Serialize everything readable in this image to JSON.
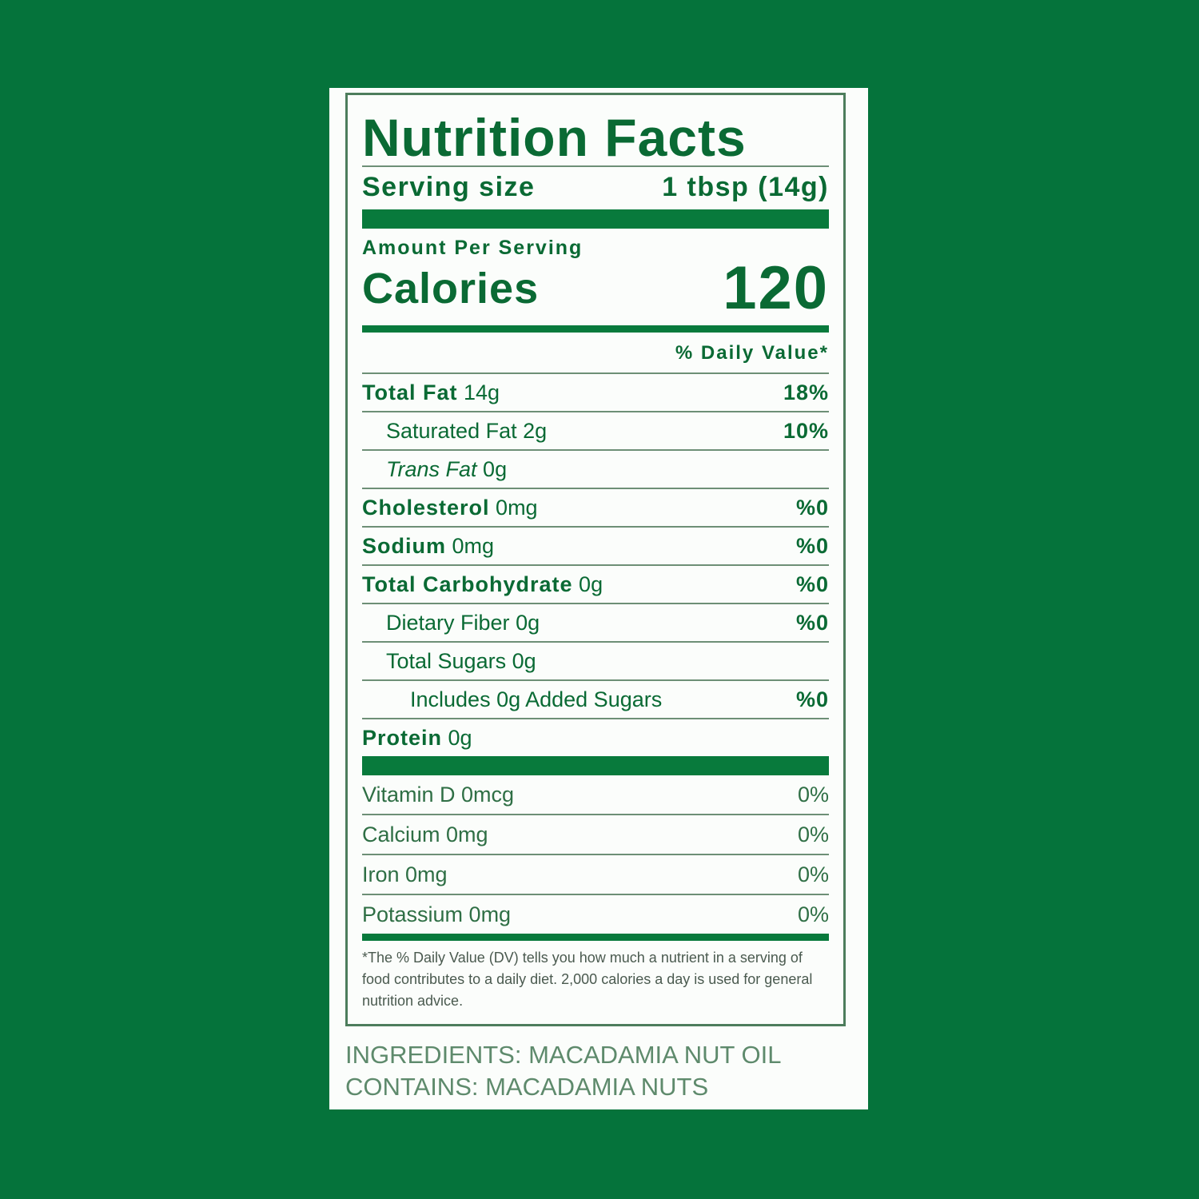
{
  "label": {
    "title": "Nutrition Facts",
    "serving_label": "Serving size",
    "serving_value": "1 tbsp (14g)",
    "amount_per_serving": "Amount Per Serving",
    "calories_label": "Calories",
    "calories_value": "120",
    "dv_header": "% Daily Value*",
    "nutrients": [
      {
        "name": "Total Fat",
        "amount": "14g",
        "dv": "18%"
      },
      {
        "name": "Saturated Fat",
        "amount": "2g",
        "dv": "10%"
      },
      {
        "name": "Trans Fat",
        "amount": "0g",
        "dv": ""
      },
      {
        "name": "Cholesterol",
        "amount": "0mg",
        "dv": "%0"
      },
      {
        "name": "Sodium",
        "amount": "0mg",
        "dv": "%0"
      },
      {
        "name": "Total Carbohydrate",
        "amount": "0g",
        "dv": "%0"
      },
      {
        "name": "Dietary Fiber",
        "amount": "0g",
        "dv": "%0"
      },
      {
        "name": "Total Sugars",
        "amount": "0g",
        "dv": ""
      },
      {
        "name": "Includes 0g Added Sugars",
        "amount": "",
        "dv": "%0"
      },
      {
        "name": "Protein",
        "amount": "0g",
        "dv": ""
      }
    ],
    "vitamins": [
      {
        "name": "Vitamin D 0mcg",
        "dv": "0%"
      },
      {
        "name": "Calcium 0mg",
        "dv": "0%"
      },
      {
        "name": "Iron 0mg",
        "dv": "0%"
      },
      {
        "name": "Potassium 0mg",
        "dv": "0%"
      }
    ],
    "footnote": "*The % Daily Value (DV) tells you how much a nutrient in a serving of food contributes to a daily diet. 2,000 calories a day is used for general nutrition advice."
  },
  "ingredients": "INGREDIENTS: MACADAMIA NUT OIL",
  "contains": "CONTAINS: MACADAMIA NUTS",
  "colors": {
    "background": "#05733b",
    "text": "#0a6a34",
    "panel": "#fbfdfb"
  }
}
